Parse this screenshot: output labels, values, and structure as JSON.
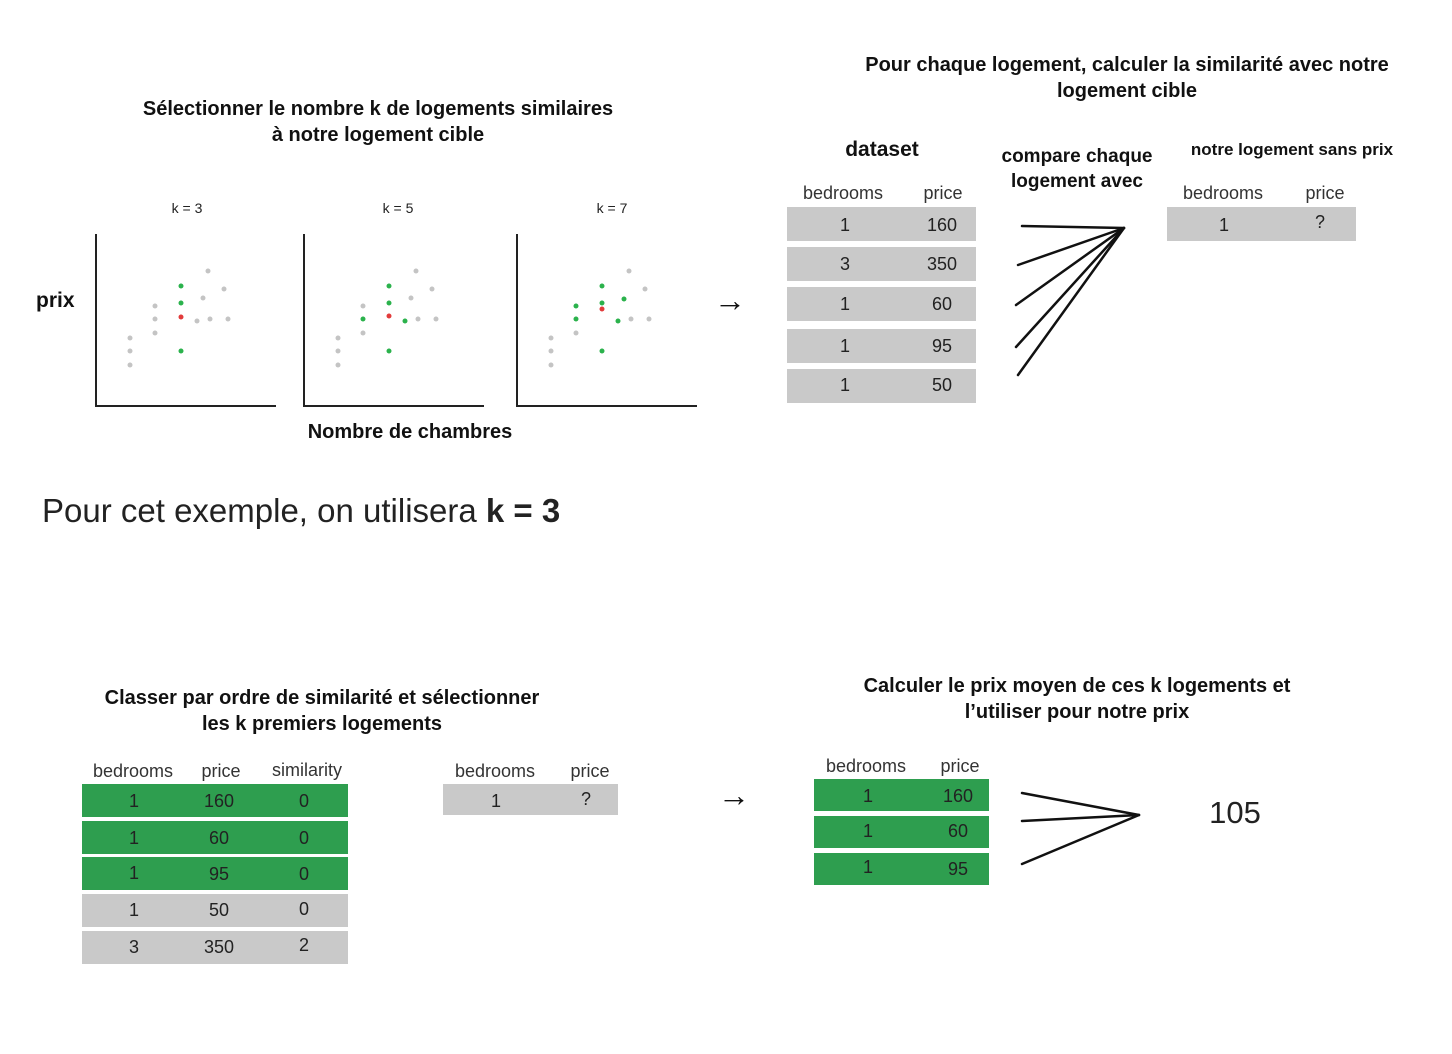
{
  "top_left": {
    "title_line1": "Sélectionner le nombre k de logements similaires",
    "title_line2": "à notre logement cible",
    "y_label": "prix",
    "x_label": "Nombre de chambres",
    "plots": [
      {
        "k_label": "k = 3"
      },
      {
        "k_label": "k = 5"
      },
      {
        "k_label": "k = 7"
      }
    ],
    "arrow": "→"
  },
  "top_right": {
    "title_line1": "Pour chaque logement, calculer  la similarité avec notre",
    "title_line2": "logement cible",
    "dataset_label": "dataset",
    "compare_line1": "compare chaque",
    "compare_line2": "logement avec",
    "target_label": "notre logement sans prix",
    "dataset_headers": [
      "bedrooms",
      "price"
    ],
    "dataset_rows": [
      [
        "1",
        "160"
      ],
      [
        "3",
        "350"
      ],
      [
        "1",
        "60"
      ],
      [
        "1",
        "95"
      ],
      [
        "1",
        "50"
      ]
    ],
    "target_headers": [
      "bedrooms",
      "price"
    ],
    "target_row": [
      "1",
      "?"
    ]
  },
  "example": {
    "text": "Pour cet exemple, on utilisera ",
    "bold": "k = 3"
  },
  "bottom_left": {
    "title_line1": "Classer par ordre de similarité et sélectionner",
    "title_line2": "les k premiers logements",
    "headers": [
      "bedrooms",
      "price",
      "similarity"
    ],
    "rows": [
      [
        "1",
        "160",
        "0"
      ],
      [
        "1",
        "60",
        "0"
      ],
      [
        "1",
        "95",
        "0"
      ],
      [
        "1",
        "50",
        "0"
      ],
      [
        "3",
        "350",
        "2"
      ]
    ],
    "target_headers": [
      "bedrooms",
      "price"
    ],
    "target_row": [
      "1",
      "?"
    ],
    "arrow": "→"
  },
  "bottom_right": {
    "title_line1": "Calculer le prix moyen de ces k logements et",
    "title_line2": "l’utiliser pour notre prix",
    "headers": [
      "bedrooms",
      "price"
    ],
    "rows": [
      [
        "1",
        "160"
      ],
      [
        "1",
        "60"
      ],
      [
        "1",
        "95"
      ]
    ],
    "result": "105"
  },
  "colors": {
    "selected_row": "#2e9e4f",
    "unselected_row": "#c9c9c9",
    "neighbor_point": "#2bb24c",
    "target_point": "#e23b3b",
    "other_point": "#c4c4c4"
  }
}
